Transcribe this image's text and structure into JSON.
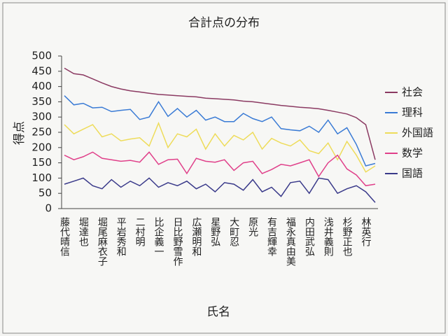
{
  "chart_data": {
    "type": "line",
    "title": "合計点の分布",
    "x_label": "氏名",
    "y_label": "得点",
    "categories": [
      "藤代晴信",
      null,
      "堀達也",
      null,
      "堀尾麻衣子",
      null,
      "平岩秀和",
      null,
      "二村明",
      null,
      "比企義一",
      null,
      "日比野雪作",
      null,
      "広瀬明和",
      null,
      "星野弘",
      null,
      "大町忍",
      null,
      "原光",
      null,
      "有吉輝幸",
      null,
      "福永真由美",
      null,
      "内田武弘",
      null,
      "浅井義則",
      null,
      "杉野正也",
      null,
      "林英行",
      null
    ],
    "series": [
      {
        "name": "社会",
        "color": "#8b3a62",
        "values": [
          460,
          442,
          438,
          425,
          412,
          400,
          392,
          386,
          382,
          378,
          374,
          372,
          370,
          368,
          366,
          362,
          360,
          358,
          356,
          352,
          350,
          346,
          342,
          338,
          335,
          332,
          330,
          327,
          322,
          316,
          310,
          298,
          275,
          160
        ]
      },
      {
        "name": "理科",
        "color": "#3a7bd5",
        "values": [
          370,
          340,
          345,
          330,
          332,
          318,
          322,
          325,
          292,
          300,
          350,
          302,
          328,
          300,
          322,
          290,
          300,
          285,
          285,
          312,
          295,
          285,
          300,
          262,
          258,
          255,
          270,
          250,
          290,
          245,
          265,
          210,
          140,
          148
        ]
      },
      {
        "name": "外国語",
        "color": "#eedc5a",
        "values": [
          275,
          245,
          260,
          275,
          235,
          245,
          222,
          228,
          232,
          205,
          280,
          200,
          245,
          235,
          260,
          195,
          245,
          205,
          240,
          225,
          250,
          195,
          230,
          215,
          205,
          225,
          190,
          180,
          215,
          160,
          220,
          175,
          120,
          140
        ]
      },
      {
        "name": "数学",
        "color": "#e0408a",
        "values": [
          175,
          160,
          170,
          185,
          165,
          160,
          155,
          158,
          152,
          185,
          145,
          160,
          162,
          115,
          165,
          155,
          152,
          160,
          125,
          150,
          155,
          115,
          128,
          145,
          140,
          150,
          160,
          105,
          150,
          175,
          130,
          110,
          75,
          80
        ]
      },
      {
        "name": "国語",
        "color": "#3a3a8a",
        "values": [
          80,
          90,
          100,
          75,
          65,
          95,
          70,
          90,
          75,
          100,
          70,
          85,
          75,
          90,
          65,
          80,
          55,
          85,
          80,
          60,
          95,
          55,
          70,
          40,
          85,
          90,
          50,
          100,
          95,
          50,
          65,
          75,
          55,
          20
        ]
      }
    ],
    "ylim": [
      0,
      500
    ],
    "yticks": [
      0,
      50,
      100,
      150,
      200,
      250,
      300,
      350,
      400,
      450,
      500
    ],
    "grid": false,
    "legend": "right"
  }
}
